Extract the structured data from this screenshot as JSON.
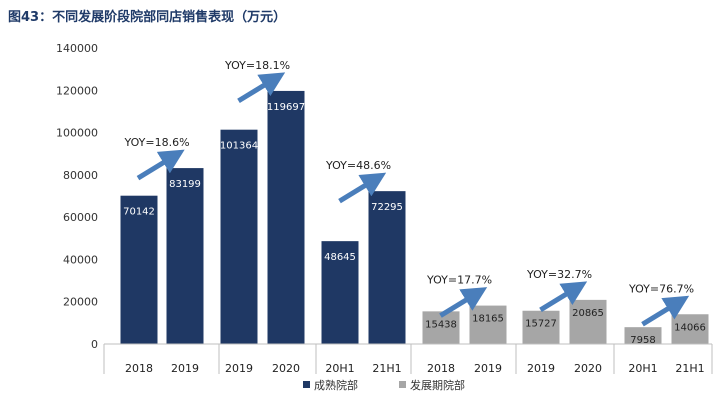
{
  "header": {
    "title": "图43：不同发展阶段院部同店销售表现（万元）"
  },
  "colors": {
    "mature": "#1f3864",
    "developing": "#a6a6a6",
    "arrow": "#4a7ebb",
    "axis": "#bfbfbf"
  },
  "legend": {
    "mature": "成熟院部",
    "developing": "发展期院部"
  },
  "chart_data": {
    "type": "bar",
    "title": "图43：不同发展阶段院部同店销售表现（万元）",
    "ylim": [
      0,
      140000
    ],
    "yticks": [
      0,
      20000,
      40000,
      60000,
      80000,
      100000,
      120000,
      140000
    ],
    "grid": false,
    "legend_position": "bottom",
    "series": [
      {
        "name": "成熟院部",
        "key": "mature"
      },
      {
        "name": "发展期院部",
        "key": "developing"
      }
    ],
    "bars": [
      {
        "category": "2018",
        "value": 70142,
        "series": "mature"
      },
      {
        "category": "2019",
        "value": 83199,
        "series": "mature"
      },
      {
        "category": "2019",
        "value": 101364,
        "series": "mature"
      },
      {
        "category": "2020",
        "value": 119697,
        "series": "mature"
      },
      {
        "category": "20H1",
        "value": 48645,
        "series": "mature"
      },
      {
        "category": "21H1",
        "value": 72295,
        "series": "mature"
      },
      {
        "category": "2018",
        "value": 15438,
        "series": "developing"
      },
      {
        "category": "2019",
        "value": 18165,
        "series": "developing"
      },
      {
        "category": "2019",
        "value": 15727,
        "series": "developing"
      },
      {
        "category": "2020",
        "value": 20865,
        "series": "developing"
      },
      {
        "category": "20H1",
        "value": 7958,
        "series": "developing"
      },
      {
        "category": "21H1",
        "value": 14066,
        "series": "developing"
      }
    ],
    "annotations": [
      {
        "text": "YOY=18.6%",
        "pair": [
          0,
          1
        ]
      },
      {
        "text": "YOY=18.1%",
        "pair": [
          2,
          3
        ]
      },
      {
        "text": "YOY=48.6%",
        "pair": [
          4,
          5
        ]
      },
      {
        "text": "YOY=17.7%",
        "pair": [
          6,
          7
        ]
      },
      {
        "text": "YOY=32.7%",
        "pair": [
          8,
          9
        ]
      },
      {
        "text": "YOY=76.7%",
        "pair": [
          10,
          11
        ]
      }
    ]
  }
}
